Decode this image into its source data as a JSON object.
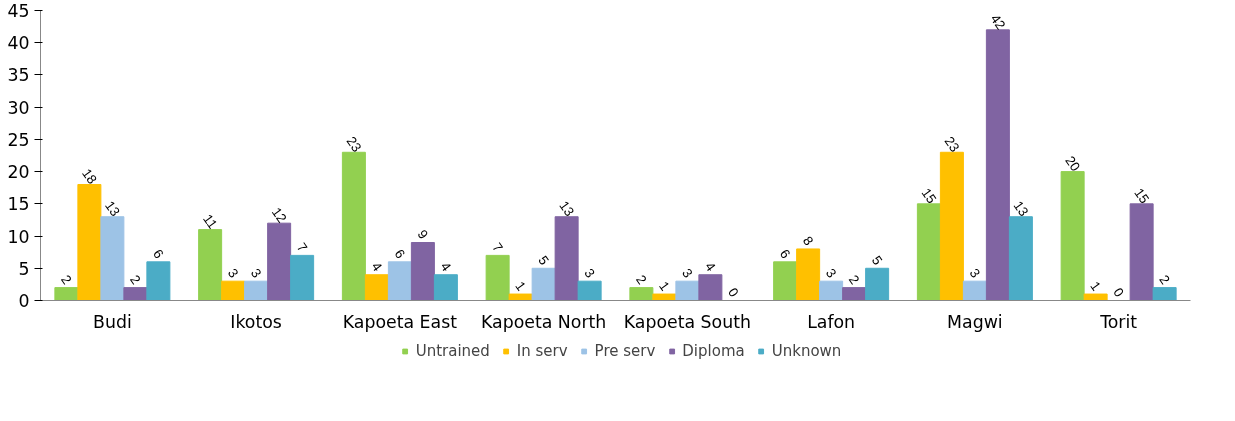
{
  "chart_data": {
    "type": "bar",
    "categories": [
      "Budi",
      "Ikotos",
      "Kapoeta East",
      "Kapoeta North",
      "Kapoeta South",
      "Lafon",
      "Magwi",
      "Torit"
    ],
    "series": [
      {
        "name": "Untrained",
        "color": "#92d050",
        "values": [
          2,
          11,
          23,
          7,
          2,
          6,
          15,
          20
        ]
      },
      {
        "name": "In serv",
        "color": "#ffc000",
        "values": [
          18,
          3,
          4,
          1,
          1,
          8,
          23,
          1
        ]
      },
      {
        "name": "Pre serv",
        "color": "#9dc3e6",
        "values": [
          13,
          3,
          6,
          5,
          3,
          3,
          3,
          0
        ]
      },
      {
        "name": "Diploma",
        "color": "#8064a2",
        "values": [
          2,
          12,
          9,
          13,
          4,
          2,
          42,
          15
        ]
      },
      {
        "name": "Unknown",
        "color": "#4bacc6",
        "values": [
          6,
          7,
          4,
          3,
          0,
          5,
          13,
          2
        ]
      }
    ],
    "ylim": [
      0,
      45
    ],
    "yticks": [
      0,
      5,
      10,
      15,
      20,
      25,
      30,
      35,
      40,
      45
    ],
    "grid": false,
    "legend": "bottom",
    "data_labels": true
  }
}
